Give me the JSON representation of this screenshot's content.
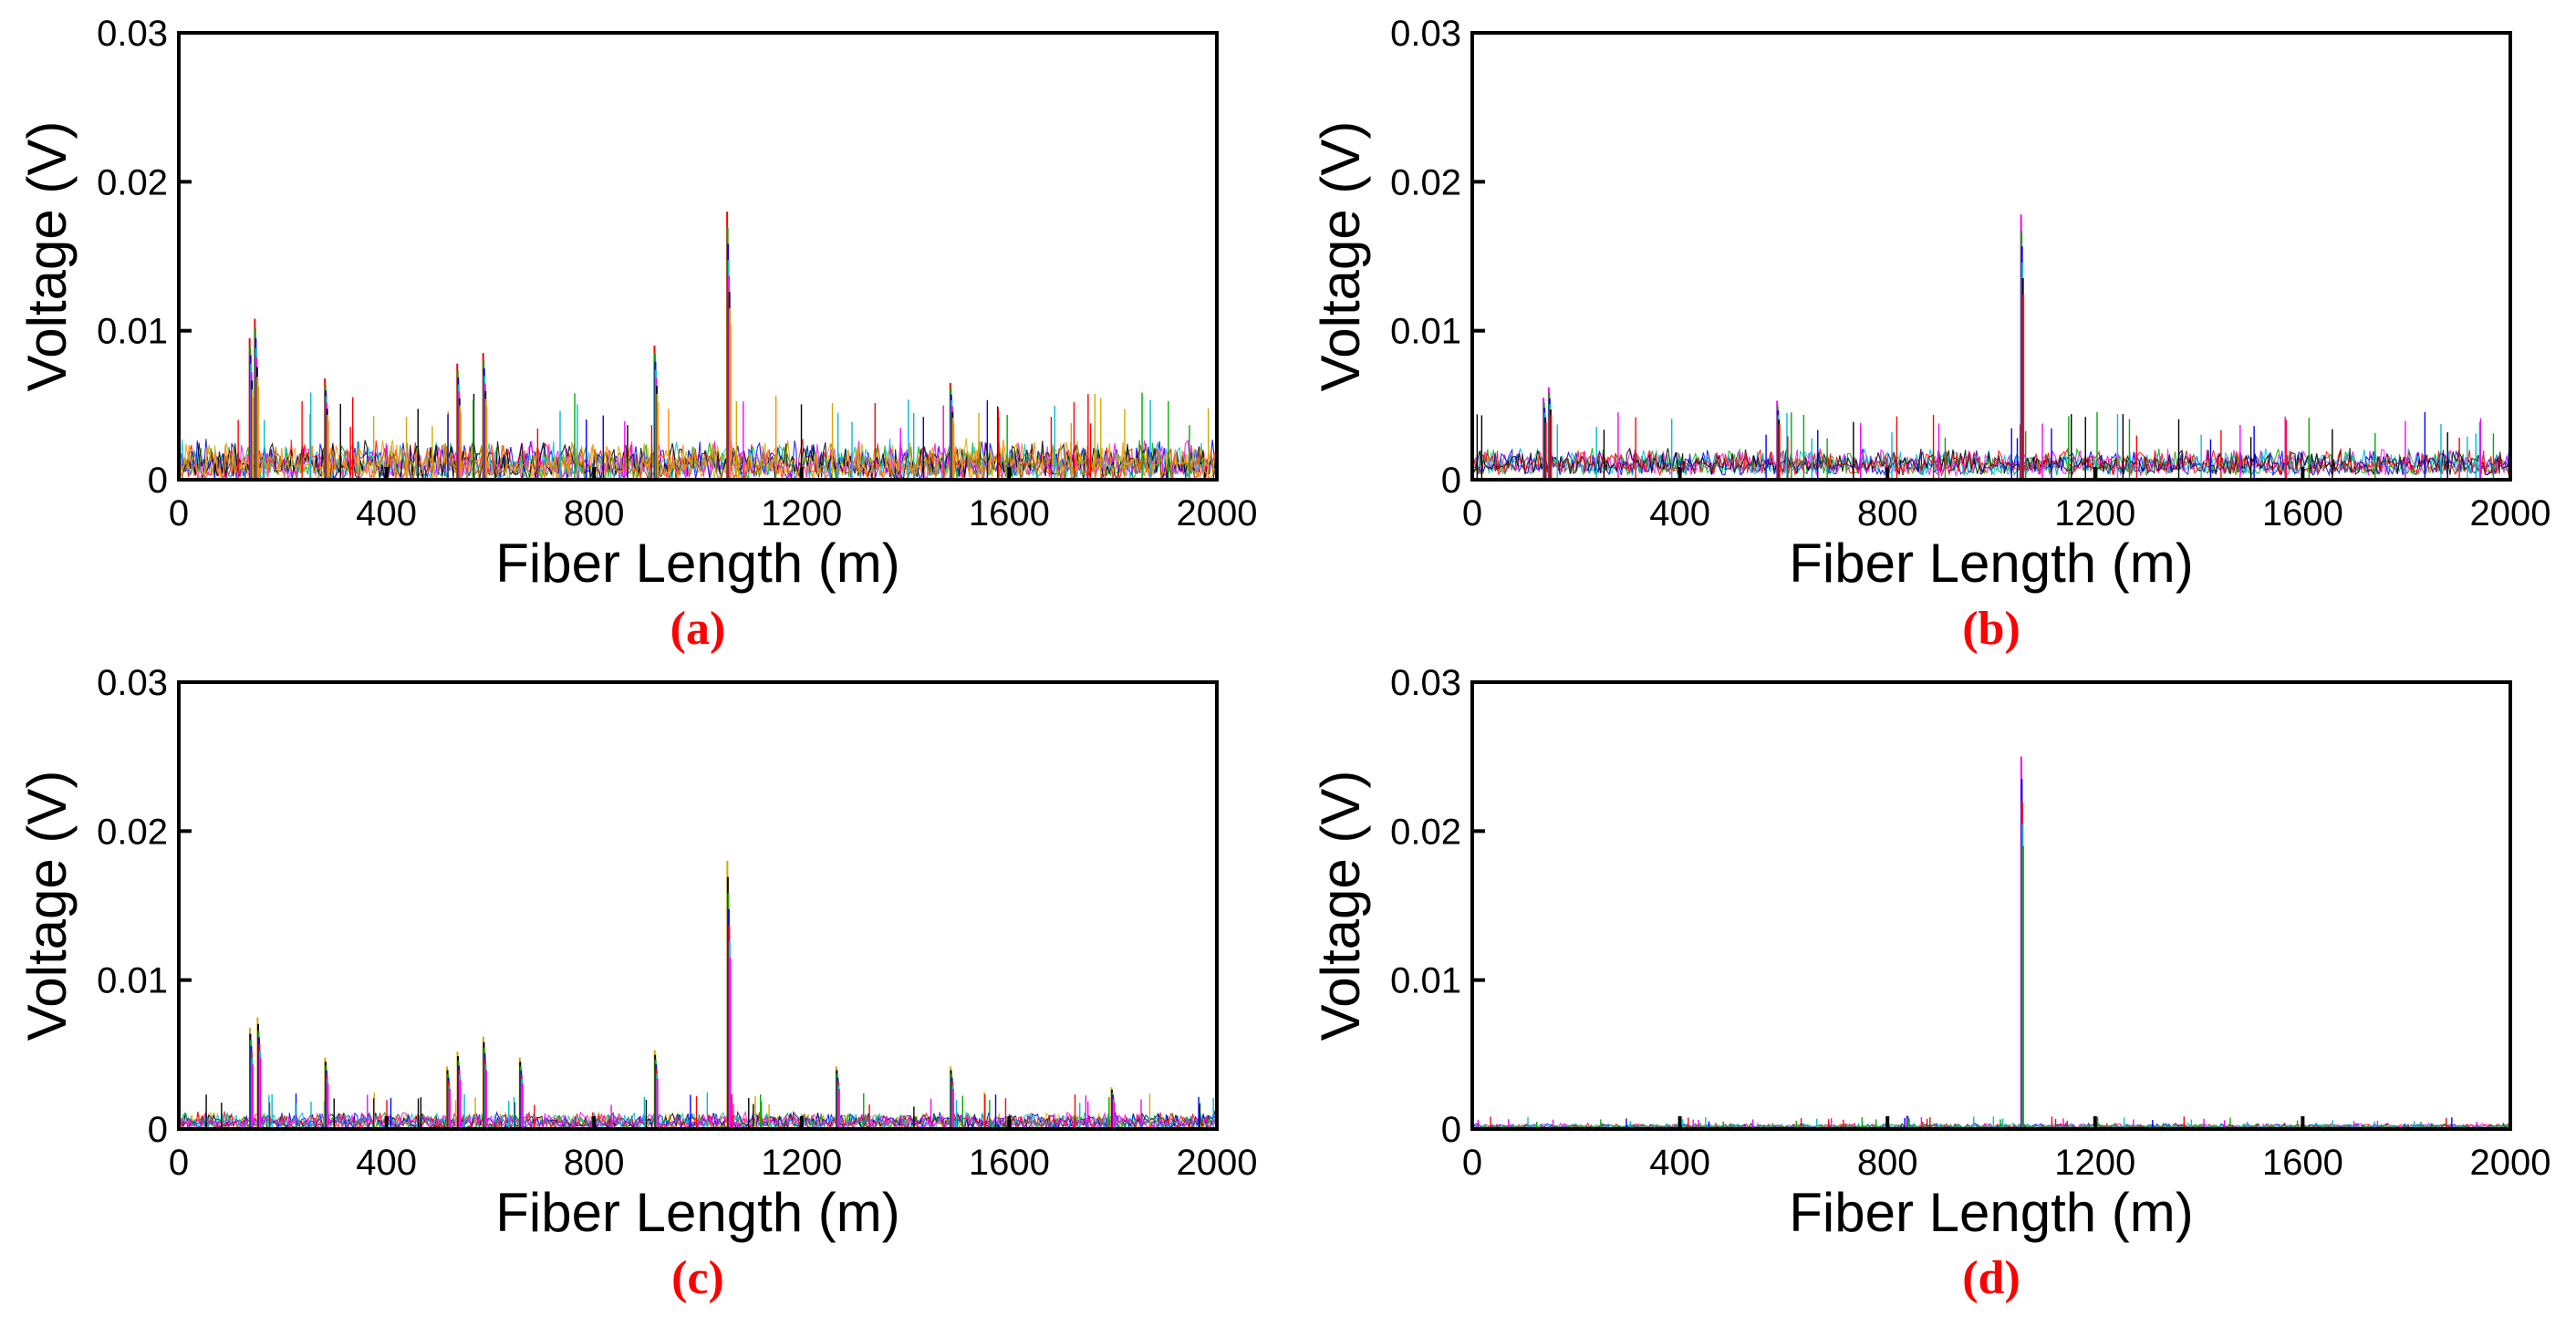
{
  "figure": {
    "panels": [
      "(a)",
      "(b)",
      "(c)",
      "(d)"
    ]
  },
  "chart_data": [
    {
      "type": "line",
      "panel_label": "(a)",
      "xlabel": "Fiber Length (m)",
      "ylabel": "Voltage (V)",
      "xlim": [
        0,
        2000
      ],
      "ylim": [
        0,
        0.03
      ],
      "xticks": [
        "0",
        "400",
        "800",
        "1200",
        "1600",
        "2000"
      ],
      "yticks": [
        "0",
        "0.01",
        "0.02",
        "0.03"
      ],
      "noise_floor": 0.0028,
      "noise_min": 0.0,
      "series_colors": [
        "#ff0000",
        "#00aa00",
        "#0000ff",
        "#00bcd4",
        "#ff00ff",
        "#000000",
        "#d4a800",
        "#ff8800"
      ],
      "peaks": [
        {
          "x": 140,
          "y": 0.0095
        },
        {
          "x": 150,
          "y": 0.0108
        },
        {
          "x": 285,
          "y": 0.0068
        },
        {
          "x": 540,
          "y": 0.0078
        },
        {
          "x": 590,
          "y": 0.0085
        },
        {
          "x": 920,
          "y": 0.009
        },
        {
          "x": 1060,
          "y": 0.018
        },
        {
          "x": 1490,
          "y": 0.0065
        }
      ]
    },
    {
      "type": "line",
      "panel_label": "(b)",
      "xlabel": "Fiber Length (m)",
      "ylabel": "Voltage (V)",
      "xlim": [
        0,
        2000
      ],
      "ylim": [
        0,
        0.03
      ],
      "xticks": [
        "0",
        "400",
        "800",
        "1200",
        "1600",
        "2000"
      ],
      "yticks": [
        "0",
        "0.01",
        "0.02",
        "0.03"
      ],
      "noise_floor": 0.0022,
      "noise_min": 0.0003,
      "series_colors": [
        "#ff00ff",
        "#00aa00",
        "#0000ff",
        "#00bcd4",
        "#000000",
        "#ff0000"
      ],
      "peaks": [
        {
          "x": 140,
          "y": 0.0055
        },
        {
          "x": 150,
          "y": 0.0062
        },
        {
          "x": 590,
          "y": 0.0053
        },
        {
          "x": 1060,
          "y": 0.0178
        }
      ]
    },
    {
      "type": "line",
      "panel_label": "(c)",
      "xlabel": "Fiber Length (m)",
      "ylabel": "Voltage (V)",
      "xlim": [
        0,
        2000
      ],
      "ylim": [
        0,
        0.03
      ],
      "xticks": [
        "0",
        "400",
        "800",
        "1200",
        "1600",
        "2000"
      ],
      "yticks": [
        "0",
        "0.01",
        "0.02",
        "0.03"
      ],
      "noise_floor": 0.0012,
      "noise_min": 0.0,
      "series_colors": [
        "#d4a800",
        "#000000",
        "#00aa00",
        "#0000ff",
        "#ff0000",
        "#00bcd4",
        "#ff00ff"
      ],
      "peaks": [
        {
          "x": 140,
          "y": 0.0068
        },
        {
          "x": 155,
          "y": 0.0075
        },
        {
          "x": 285,
          "y": 0.0048
        },
        {
          "x": 520,
          "y": 0.0042
        },
        {
          "x": 540,
          "y": 0.0052
        },
        {
          "x": 590,
          "y": 0.0062
        },
        {
          "x": 660,
          "y": 0.0048
        },
        {
          "x": 920,
          "y": 0.0053
        },
        {
          "x": 1060,
          "y": 0.018
        },
        {
          "x": 1270,
          "y": 0.0042
        },
        {
          "x": 1490,
          "y": 0.0042
        },
        {
          "x": 1800,
          "y": 0.0028
        }
      ]
    },
    {
      "type": "line",
      "panel_label": "(d)",
      "xlabel": "Fiber Length (m)",
      "ylabel": "Voltage (V)",
      "xlim": [
        0,
        2000
      ],
      "ylim": [
        0,
        0.03
      ],
      "xticks": [
        "0",
        "400",
        "800",
        "1200",
        "1600",
        "2000"
      ],
      "yticks": [
        "0",
        "0.01",
        "0.02",
        "0.03"
      ],
      "noise_floor": 0.0004,
      "noise_min": 0.0,
      "series_colors": [
        "#ff00ff",
        "#0000ff",
        "#ff0000",
        "#00bcd4",
        "#00aa00"
      ],
      "peaks": [
        {
          "x": 1060,
          "y": 0.025
        },
        {
          "x": 840,
          "y": 0.0009
        }
      ]
    }
  ]
}
